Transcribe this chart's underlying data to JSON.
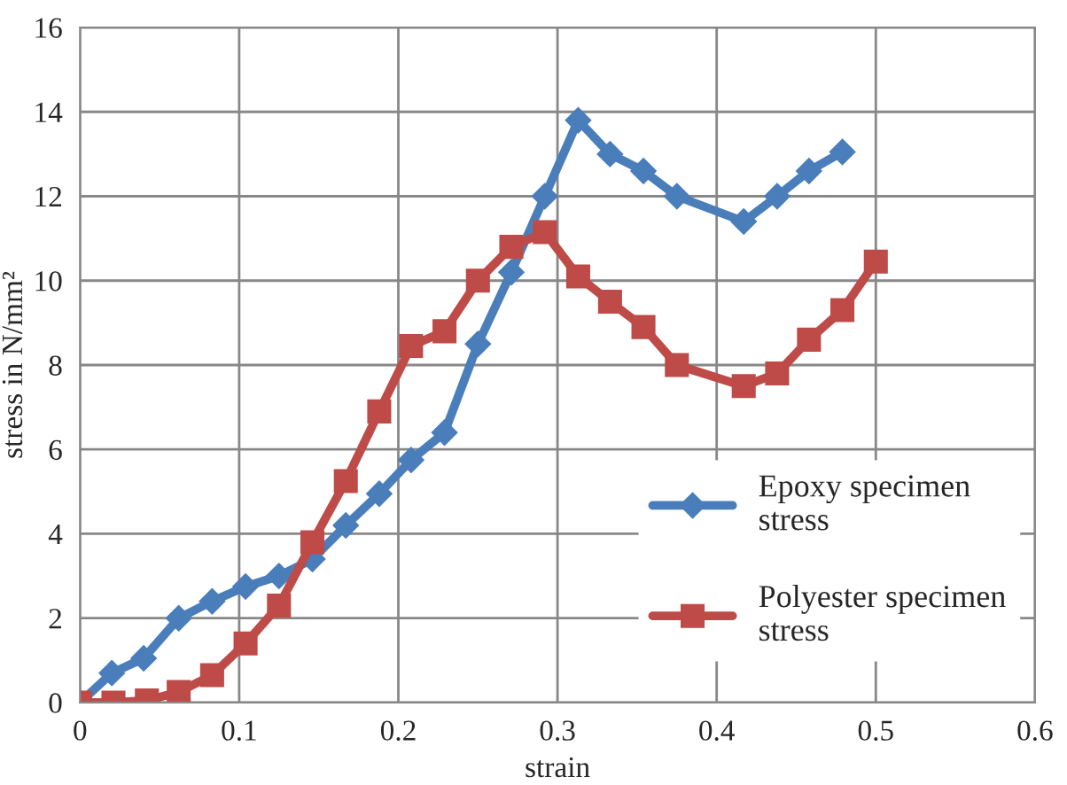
{
  "chart_data": {
    "type": "line",
    "xlabel": "strain",
    "ylabel": "stress in N/mm²",
    "xlim": [
      0,
      0.6
    ],
    "xticks": [
      0,
      0.1,
      0.2,
      0.3,
      0.4,
      0.5,
      0.6
    ],
    "ylim": [
      0,
      16
    ],
    "yticks": [
      0,
      2,
      4,
      6,
      8,
      10,
      12,
      14,
      16
    ],
    "grid": true,
    "legend": "right",
    "series": [
      {
        "name": "Epoxy specimen stress",
        "color": "#4a7ebb",
        "marker": "diamond",
        "x": [
          0,
          0.02,
          0.04,
          0.062,
          0.083,
          0.104,
          0.125,
          0.146,
          0.167,
          0.188,
          0.208,
          0.229,
          0.25,
          0.271,
          0.292,
          0.313,
          0.333,
          0.354,
          0.375,
          0.417,
          0.438,
          0.458,
          0.479
        ],
        "values": [
          0,
          0.7,
          1.05,
          2.0,
          2.4,
          2.75,
          3.0,
          3.4,
          4.2,
          4.95,
          5.75,
          6.4,
          8.5,
          10.2,
          12.0,
          13.8,
          13.0,
          12.6,
          12.0,
          11.4,
          12.0,
          12.6,
          13.05
        ]
      },
      {
        "name": "Polyester specimen stress",
        "color": "#be4b48",
        "marker": "square",
        "x": [
          0,
          0.021,
          0.042,
          0.062,
          0.083,
          0.104,
          0.125,
          0.146,
          0.167,
          0.188,
          0.208,
          0.229,
          0.25,
          0.271,
          0.292,
          0.313,
          0.333,
          0.354,
          0.375,
          0.417,
          0.438,
          0.458,
          0.479,
          0.5
        ],
        "values": [
          0,
          0,
          0.05,
          0.25,
          0.65,
          1.4,
          2.3,
          3.8,
          5.25,
          6.9,
          8.45,
          8.8,
          10.0,
          10.8,
          11.15,
          10.1,
          9.5,
          8.9,
          8.0,
          7.5,
          7.8,
          8.6,
          9.3,
          10.45
        ]
      }
    ]
  }
}
